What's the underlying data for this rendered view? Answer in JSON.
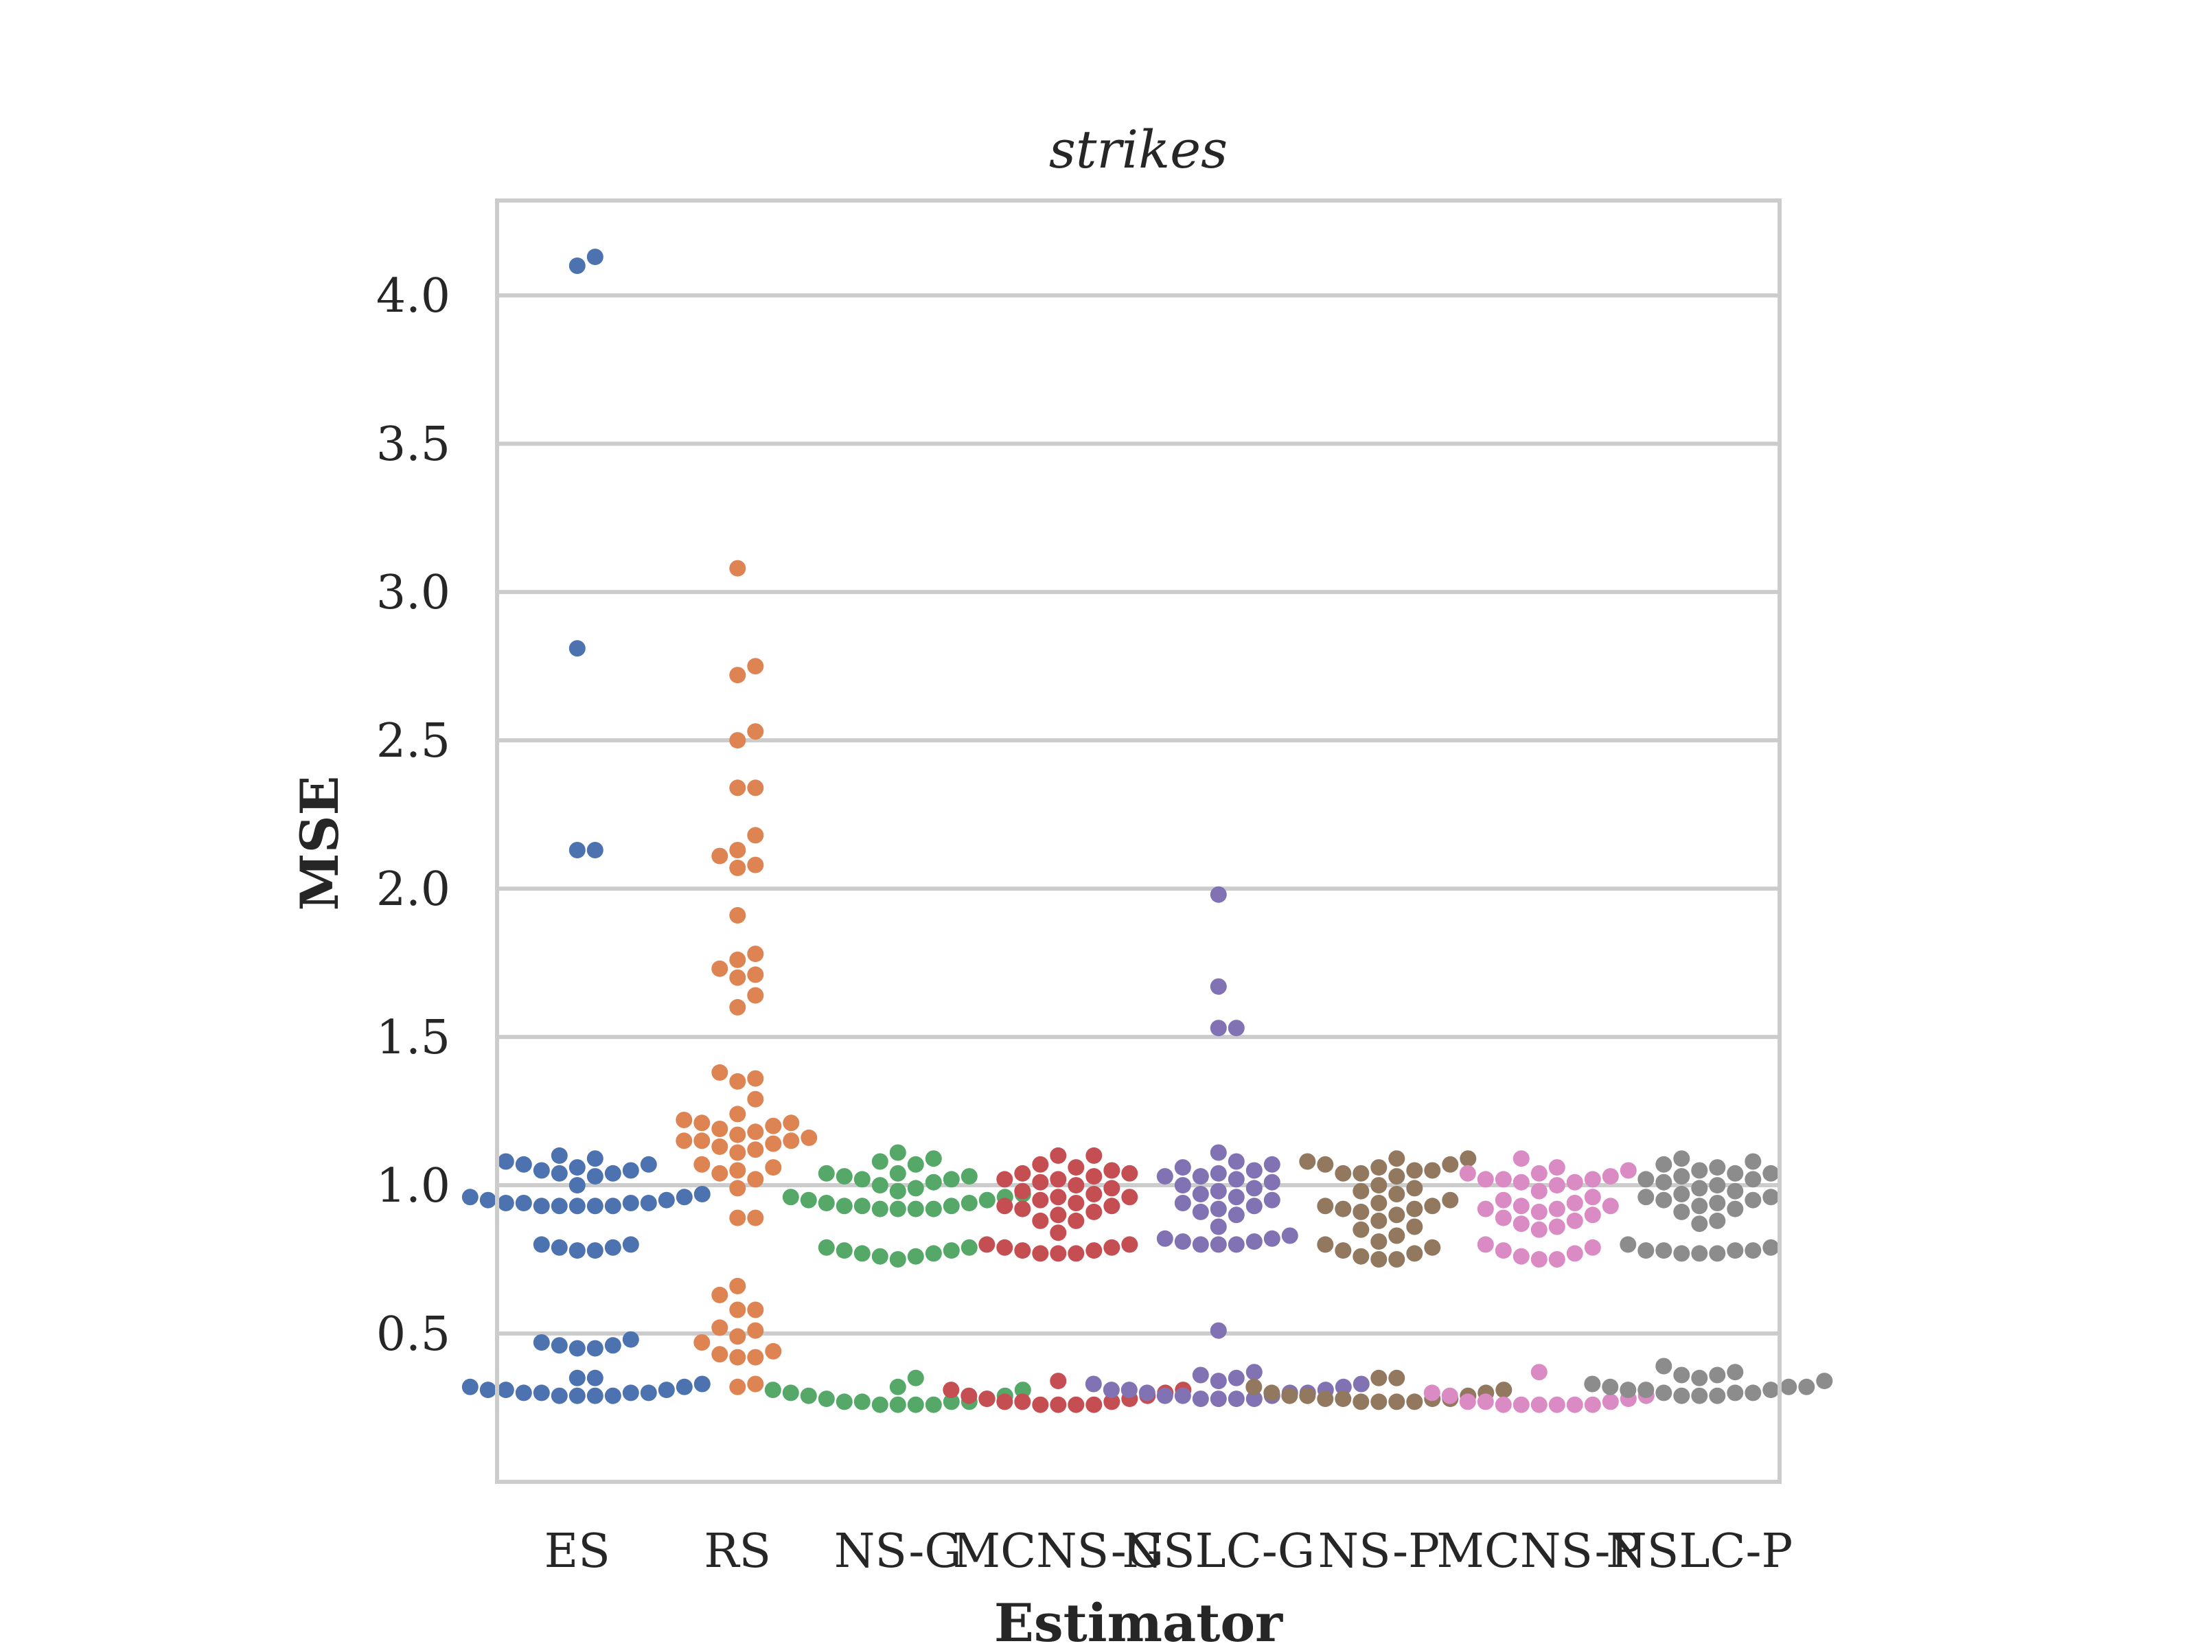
{
  "chart_data": {
    "type": "scatter",
    "subtype": "swarm",
    "title": "strikes",
    "xlabel": "Estimator",
    "ylabel": "MSE",
    "ylim": [
      0.0,
      4.32
    ],
    "yticks": [
      "0.5",
      "1.0",
      "1.5",
      "2.0",
      "2.5",
      "3.0",
      "3.5",
      "4.0"
    ],
    "grid": "horizontal",
    "legend": "none",
    "categories": [
      "ES",
      "RS",
      "NS-G",
      "MCNS-G",
      "NSLC-G",
      "NS-P",
      "MCNS-P",
      "NSLC-P"
    ],
    "series": [
      {
        "color": "#4c72b0",
        "values": [
          4.13,
          4.1,
          2.81,
          2.13,
          2.13,
          1.1,
          1.09,
          1.08,
          1.07,
          1.07,
          1.06,
          1.05,
          1.05,
          1.04,
          1.04,
          1.03,
          1.0,
          0.97,
          0.96,
          0.96,
          0.95,
          0.94,
          0.94,
          0.94,
          0.93,
          0.93,
          0.93,
          0.93,
          0.93,
          0.94,
          0.95,
          0.8,
          0.79,
          0.78,
          0.78,
          0.79,
          0.8,
          0.48,
          0.47,
          0.46,
          0.45,
          0.45,
          0.46,
          0.35,
          0.35,
          0.33,
          0.32,
          0.31,
          0.31,
          0.3,
          0.3,
          0.29,
          0.29,
          0.29,
          0.29,
          0.3,
          0.3,
          0.31,
          0.32
        ]
      },
      {
        "color": "#dd8452",
        "values": [
          3.08,
          2.75,
          2.72,
          2.53,
          2.5,
          2.34,
          2.34,
          2.18,
          2.13,
          2.11,
          2.08,
          2.07,
          1.91,
          1.78,
          1.76,
          1.73,
          1.71,
          1.7,
          1.64,
          1.6,
          1.38,
          1.36,
          1.35,
          1.29,
          1.24,
          1.22,
          1.21,
          1.21,
          1.2,
          1.19,
          1.18,
          1.17,
          1.16,
          1.15,
          1.15,
          1.15,
          1.14,
          1.13,
          1.12,
          1.11,
          1.07,
          1.06,
          1.05,
          1.04,
          1.02,
          0.99,
          0.89,
          0.89,
          0.66,
          0.63,
          0.58,
          0.58,
          0.52,
          0.51,
          0.49,
          0.47,
          0.44,
          0.43,
          0.42,
          0.42,
          0.33,
          0.32
        ]
      },
      {
        "color": "#55a868",
        "values": [
          1.11,
          1.09,
          1.08,
          1.07,
          1.04,
          1.04,
          1.03,
          1.03,
          1.02,
          1.02,
          1.01,
          1.0,
          0.99,
          0.98,
          0.97,
          0.96,
          0.95,
          0.94,
          0.93,
          0.93,
          0.92,
          0.92,
          0.92,
          0.92,
          0.93,
          0.94,
          0.95,
          0.96,
          0.79,
          0.78,
          0.77,
          0.76,
          0.75,
          0.76,
          0.77,
          0.78,
          0.79,
          0.35,
          0.32,
          0.31,
          0.31,
          0.3,
          0.29,
          0.28,
          0.27,
          0.27,
          0.26,
          0.26,
          0.26,
          0.26,
          0.27,
          0.27,
          0.28,
          0.29
        ]
      },
      {
        "color": "#c44e52",
        "values": [
          1.1,
          1.1,
          1.07,
          1.06,
          1.05,
          1.04,
          1.04,
          1.03,
          1.02,
          1.02,
          1.01,
          1.0,
          0.99,
          0.98,
          0.97,
          0.96,
          0.96,
          0.95,
          0.94,
          0.93,
          0.93,
          0.92,
          0.91,
          0.9,
          0.88,
          0.88,
          0.84,
          0.8,
          0.79,
          0.78,
          0.77,
          0.77,
          0.77,
          0.78,
          0.79,
          0.8,
          0.34,
          0.31,
          0.31,
          0.3,
          0.29,
          0.28,
          0.27,
          0.27,
          0.26,
          0.26,
          0.26,
          0.26,
          0.27,
          0.28,
          0.29
        ]
      },
      {
        "color": "#8172b3",
        "values": [
          1.98,
          1.67,
          1.53,
          1.53,
          1.11,
          1.08,
          1.07,
          1.06,
          1.05,
          1.04,
          1.03,
          1.03,
          1.02,
          1.01,
          1.0,
          0.99,
          0.98,
          0.97,
          0.96,
          0.95,
          0.94,
          0.93,
          0.92,
          0.91,
          0.9,
          0.86,
          0.83,
          0.82,
          0.81,
          0.8,
          0.8,
          0.8,
          0.81,
          0.82,
          0.51,
          0.37,
          0.36,
          0.35,
          0.34,
          0.33,
          0.32,
          0.31,
          0.31,
          0.3,
          0.3,
          0.29,
          0.29,
          0.28,
          0.28,
          0.28,
          0.28,
          0.29,
          0.3,
          0.31,
          0.33
        ]
      },
      {
        "color": "#937860",
        "values": [
          1.09,
          1.09,
          1.08,
          1.07,
          1.07,
          1.06,
          1.05,
          1.05,
          1.04,
          1.04,
          1.03,
          1.0,
          0.99,
          0.98,
          0.97,
          0.95,
          0.94,
          0.93,
          0.93,
          0.92,
          0.92,
          0.91,
          0.9,
          0.88,
          0.86,
          0.85,
          0.83,
          0.81,
          0.8,
          0.79,
          0.78,
          0.77,
          0.76,
          0.75,
          0.75,
          0.35,
          0.35,
          0.32,
          0.31,
          0.3,
          0.3,
          0.29,
          0.29,
          0.28,
          0.28,
          0.27,
          0.27,
          0.27,
          0.27,
          0.28,
          0.28,
          0.29
        ]
      },
      {
        "color": "#da8bc3",
        "values": [
          1.09,
          1.06,
          1.05,
          1.04,
          1.04,
          1.03,
          1.02,
          1.02,
          1.02,
          1.01,
          1.01,
          1.0,
          0.98,
          0.96,
          0.95,
          0.94,
          0.93,
          0.93,
          0.92,
          0.92,
          0.91,
          0.9,
          0.89,
          0.88,
          0.87,
          0.86,
          0.85,
          0.8,
          0.79,
          0.78,
          0.77,
          0.76,
          0.75,
          0.75,
          0.37,
          0.3,
          0.29,
          0.29,
          0.28,
          0.27,
          0.27,
          0.26,
          0.26,
          0.26,
          0.26,
          0.26,
          0.26,
          0.27
        ]
      },
      {
        "color": "#8c8c8c",
        "values": [
          1.09,
          1.08,
          1.07,
          1.06,
          1.05,
          1.04,
          1.04,
          1.03,
          1.02,
          1.02,
          1.01,
          1.0,
          0.99,
          0.98,
          0.97,
          0.96,
          0.96,
          0.95,
          0.95,
          0.94,
          0.93,
          0.92,
          0.91,
          0.88,
          0.87,
          0.8,
          0.79,
          0.78,
          0.78,
          0.77,
          0.77,
          0.77,
          0.78,
          0.78,
          0.39,
          0.37,
          0.36,
          0.36,
          0.35,
          0.34,
          0.33,
          0.32,
          0.32,
          0.31,
          0.31,
          0.3,
          0.3,
          0.29,
          0.29,
          0.29,
          0.3,
          0.31,
          0.32
        ]
      }
    ]
  }
}
